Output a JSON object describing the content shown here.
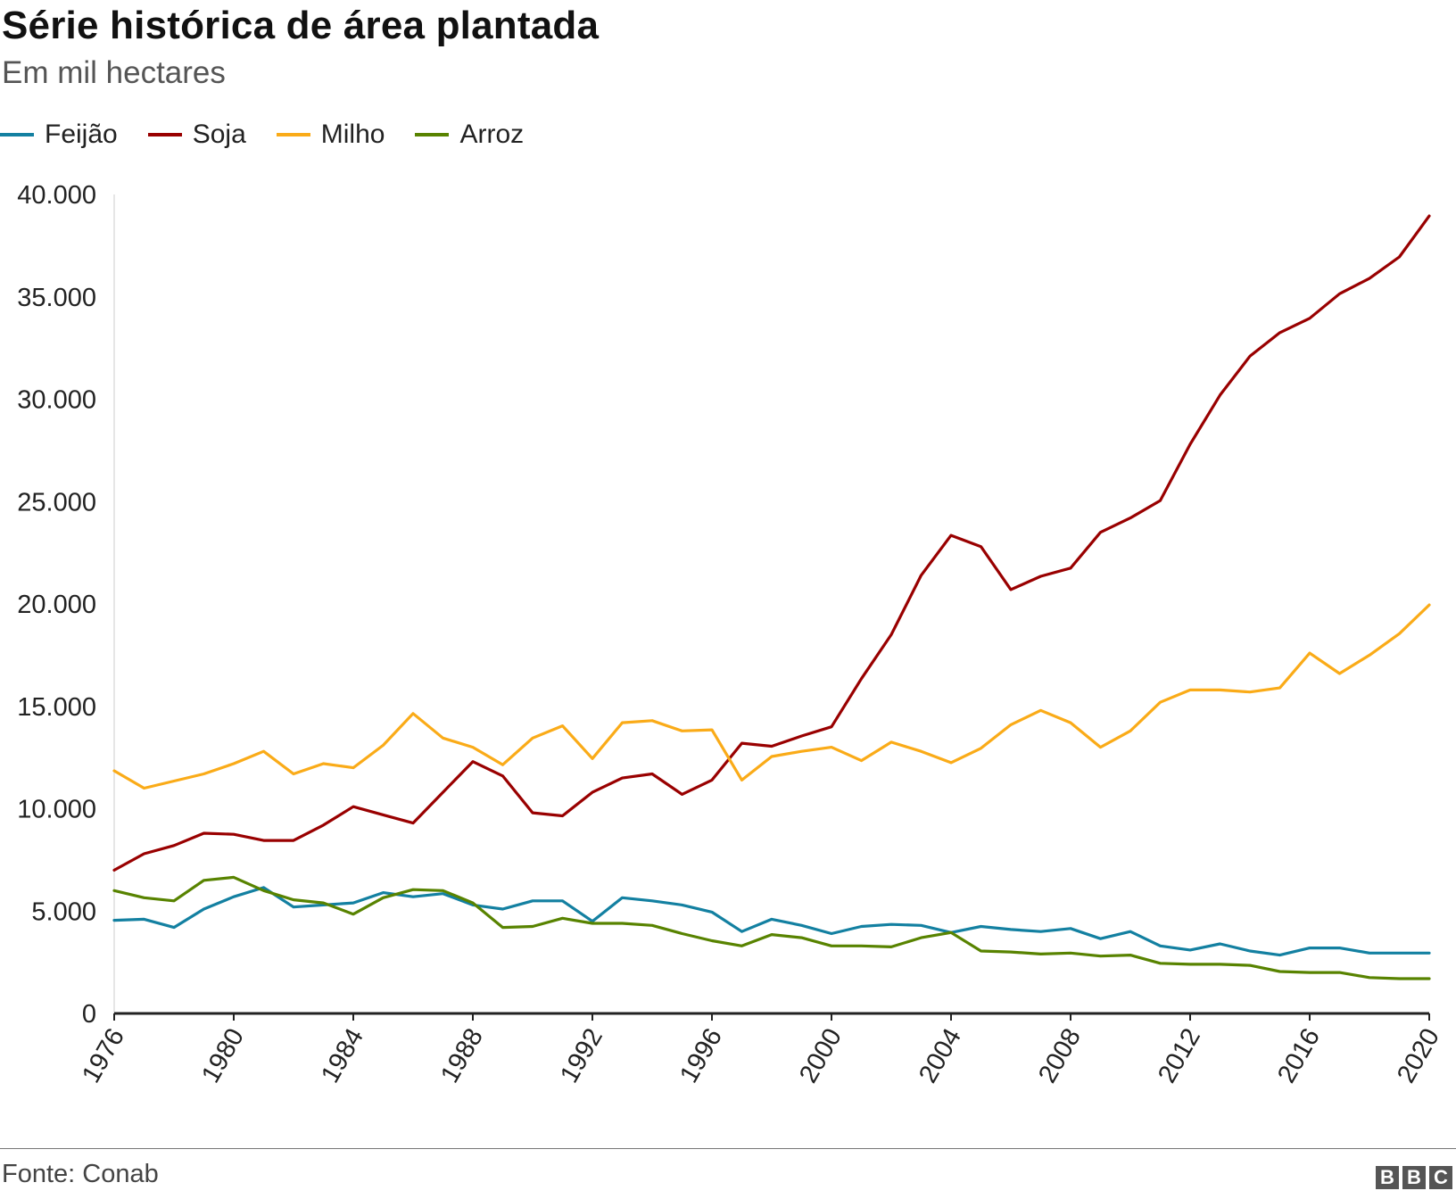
{
  "header": {
    "title": "Série histórica de área plantada",
    "subtitle": "Em mil hectares"
  },
  "footer": {
    "source": "Fonte: Conab",
    "logo_letters": [
      "B",
      "B",
      "C"
    ]
  },
  "colors": {
    "Feijão": "#1380A1",
    "Soja": "#990000",
    "Milho": "#FAAB18",
    "Arroz": "#588300"
  },
  "chart_data": {
    "type": "line",
    "title": "Série histórica de área plantada",
    "subtitle": "Em mil hectares",
    "xlabel": "",
    "ylabel": "",
    "ylim": [
      0,
      40000
    ],
    "yticks": [
      0,
      5000,
      10000,
      15000,
      20000,
      25000,
      30000,
      35000,
      40000
    ],
    "ytick_labels": [
      "0",
      "5.000",
      "10.000",
      "15.000",
      "20.000",
      "25.000",
      "30.000",
      "35.000",
      "40.000"
    ],
    "xticks": [
      1976,
      1980,
      1984,
      1988,
      1992,
      1996,
      2000,
      2004,
      2008,
      2012,
      2016,
      2020
    ],
    "grid": false,
    "legend": "top-left",
    "x": [
      1976,
      1977,
      1978,
      1979,
      1980,
      1981,
      1982,
      1983,
      1984,
      1985,
      1986,
      1987,
      1988,
      1989,
      1990,
      1991,
      1992,
      1993,
      1994,
      1995,
      1996,
      1997,
      1998,
      1999,
      2000,
      2001,
      2002,
      2003,
      2004,
      2005,
      2006,
      2007,
      2008,
      2009,
      2010,
      2011,
      2012,
      2013,
      2014,
      2015,
      2016,
      2017,
      2018,
      2019,
      2020
    ],
    "series": [
      {
        "name": "Feijão",
        "values": [
          4550,
          4600,
          4200,
          5100,
          5700,
          6150,
          5200,
          5300,
          5400,
          5900,
          5700,
          5850,
          5300,
          5100,
          5500,
          5500,
          4500,
          5650,
          5500,
          5300,
          4950,
          4000,
          4600,
          4300,
          3900,
          4250,
          4350,
          4300,
          3950,
          4250,
          4100,
          4000,
          4150,
          3650,
          4000,
          3300,
          3100,
          3400,
          3050,
          2850,
          3200,
          3200,
          2950,
          2950,
          2950
        ]
      },
      {
        "name": "Soja",
        "values": [
          7000,
          7800,
          8200,
          8800,
          8750,
          8450,
          8450,
          9200,
          10100,
          9700,
          9300,
          10800,
          12300,
          11600,
          9800,
          9650,
          10800,
          11500,
          11700,
          10700,
          11400,
          13200,
          13050,
          13550,
          14000,
          16350,
          18500,
          21400,
          23350,
          22800,
          20700,
          21350,
          21750,
          23500,
          24200,
          25050,
          27800,
          30200,
          32100,
          33250,
          33950,
          35150,
          35900,
          36950,
          38950
        ]
      },
      {
        "name": "Milho",
        "values": [
          11850,
          11000,
          11350,
          11700,
          12200,
          12800,
          11700,
          12200,
          12000,
          13100,
          14650,
          13450,
          13000,
          12150,
          13450,
          14050,
          12450,
          14200,
          14300,
          13800,
          13850,
          11400,
          12550,
          12800,
          13000,
          12350,
          13250,
          12800,
          12250,
          12950,
          14100,
          14800,
          14200,
          13000,
          13800,
          15200,
          15800,
          15800,
          15700,
          15900,
          17600,
          16600,
          17500,
          18550,
          19950
        ]
      },
      {
        "name": "Arroz",
        "values": [
          6000,
          5650,
          5500,
          6500,
          6650,
          6000,
          5550,
          5400,
          4850,
          5650,
          6050,
          6000,
          5400,
          4200,
          4250,
          4650,
          4400,
          4400,
          4300,
          3900,
          3550,
          3300,
          3850,
          3700,
          3300,
          3300,
          3250,
          3700,
          3950,
          3050,
          3000,
          2900,
          2950,
          2800,
          2850,
          2450,
          2400,
          2400,
          2350,
          2050,
          2000,
          2000,
          1750,
          1700,
          1700
        ]
      }
    ]
  }
}
